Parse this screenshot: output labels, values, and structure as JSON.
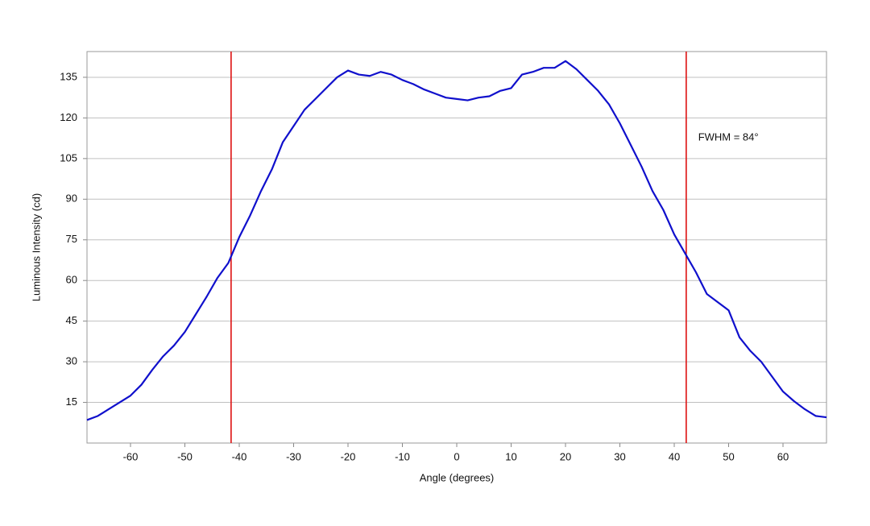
{
  "chart_data": {
    "type": "line",
    "xlabel": "Angle (degrees)",
    "ylabel": "Luminous Intensity (cd)",
    "x": [
      -68,
      -66,
      -64,
      -62,
      -60,
      -58,
      -56,
      -54,
      -52,
      -50,
      -48,
      -46,
      -44,
      -42,
      -40,
      -38,
      -36,
      -34,
      -32,
      -30,
      -28,
      -26,
      -24,
      -22,
      -20,
      -18,
      -16,
      -14,
      -12,
      -10,
      -8,
      -6,
      -4,
      -2,
      0,
      2,
      4,
      6,
      8,
      10,
      12,
      14,
      16,
      18,
      20,
      22,
      24,
      26,
      28,
      30,
      32,
      34,
      36,
      38,
      40,
      42,
      44,
      46,
      48,
      50,
      52,
      54,
      56,
      58,
      60,
      62,
      64,
      66,
      68
    ],
    "series": [
      {
        "color": "#1010cc",
        "values": [
          8.5,
          10,
          12.5,
          15,
          17.5,
          21.5,
          27,
          32,
          36,
          41,
          47.5,
          54,
          61,
          66.5,
          76,
          84,
          93,
          101,
          111,
          117,
          123,
          127,
          131,
          135,
          137.5,
          136,
          135.5,
          137,
          136,
          134,
          132.5,
          130.5,
          129,
          127.5,
          127,
          126.5,
          127.5,
          128,
          130,
          131,
          136,
          137,
          138.5,
          138.5,
          141,
          138,
          134,
          130,
          125,
          118,
          110,
          102,
          93,
          86,
          77,
          70,
          63,
          55,
          52,
          49,
          39,
          34,
          30,
          24.5,
          19,
          15.5,
          12.5,
          10,
          9.5
        ]
      }
    ],
    "vlines": {
      "x": [
        -41.5,
        42.2
      ],
      "color": "#dd1111"
    },
    "annotation": {
      "text": "FWHM = 84°",
      "x": 44.4,
      "y": 112.6
    },
    "xlim": [
      -68,
      68
    ],
    "ylim": [
      0,
      144.5
    ],
    "xticks": [
      -60,
      -50,
      -40,
      -30,
      -20,
      -10,
      0,
      10,
      20,
      30,
      40,
      50,
      60
    ],
    "yticks": [
      15,
      30,
      45,
      60,
      75,
      90,
      105,
      120,
      135
    ],
    "grid": true
  }
}
